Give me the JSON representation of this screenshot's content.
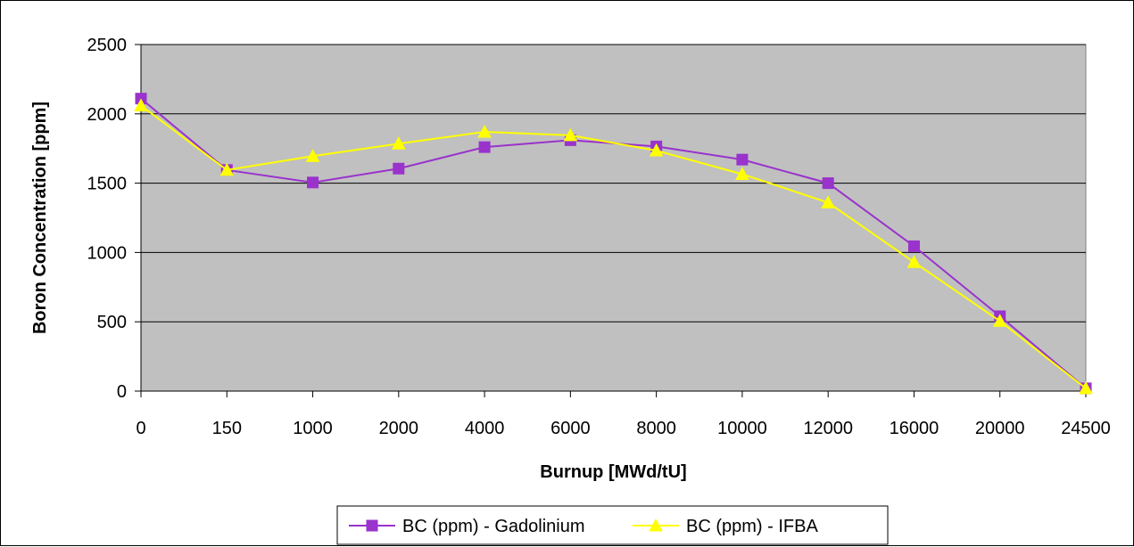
{
  "chart_data": {
    "type": "line",
    "title": "",
    "xlabel": "Burnup [MWd/tU]",
    "ylabel": "Boron Concentration [ppm]",
    "categories": [
      "0",
      "150",
      "1000",
      "2000",
      "4000",
      "6000",
      "8000",
      "10000",
      "12000",
      "16000",
      "20000",
      "24500"
    ],
    "ylim": [
      0,
      2500
    ],
    "yticks": [
      0,
      500,
      1000,
      1500,
      2000,
      2500
    ],
    "grid": "horizontal",
    "plot_background": "#c0c0c0",
    "legend_position": "bottom",
    "series": [
      {
        "name": "BC (ppm) - Gadolinium",
        "color": "#9933cc",
        "marker": "square",
        "values": [
          2110,
          1595,
          1505,
          1605,
          1760,
          1810,
          1765,
          1670,
          1500,
          1045,
          540,
          20
        ]
      },
      {
        "name": "BC (ppm) - IFBA",
        "color": "#ffff00",
        "marker": "triangle",
        "values": [
          2060,
          1595,
          1695,
          1785,
          1870,
          1845,
          1735,
          1565,
          1360,
          930,
          505,
          20
        ]
      }
    ]
  }
}
